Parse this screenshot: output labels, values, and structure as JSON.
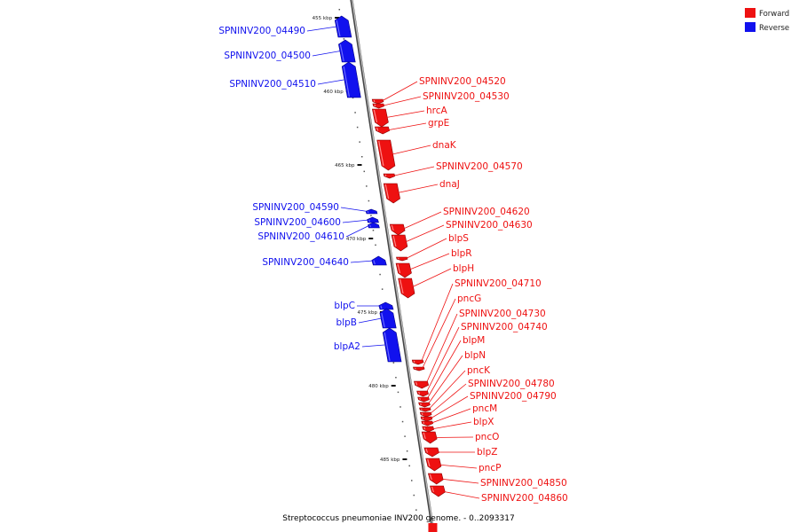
{
  "title": "Streptococcus pneumoniae INV200 genome. - 0..2093317",
  "legend": [
    {
      "label": "Forward",
      "color": "#ee1111"
    },
    {
      "label": "Reverse",
      "color": "#1111ee"
    }
  ],
  "colors": {
    "forward": "#ee1111",
    "reverse": "#1111ee",
    "axis": "#999999"
  },
  "ticks": [
    {
      "kbp": 455,
      "label": "455 kbp"
    },
    {
      "kbp": 460,
      "label": "460 kbp"
    },
    {
      "kbp": 465,
      "label": "465 kbp"
    },
    {
      "kbp": 470,
      "label": "470 kbp"
    },
    {
      "kbp": 475,
      "label": "475 kbp"
    },
    {
      "kbp": 480,
      "label": "480 kbp"
    },
    {
      "kbp": 485,
      "label": "485 kbp"
    }
  ],
  "genes": [
    {
      "name": "SPNINV200_04490",
      "strand": "reverse"
    },
    {
      "name": "SPNINV200_04500",
      "strand": "reverse"
    },
    {
      "name": "SPNINV200_04510",
      "strand": "reverse"
    },
    {
      "name": "SPNINV200_04520",
      "strand": "forward"
    },
    {
      "name": "SPNINV200_04530",
      "strand": "forward"
    },
    {
      "name": "hrcA",
      "strand": "forward"
    },
    {
      "name": "grpE",
      "strand": "forward"
    },
    {
      "name": "dnaK",
      "strand": "forward"
    },
    {
      "name": "SPNINV200_04570",
      "strand": "forward"
    },
    {
      "name": "dnaJ",
      "strand": "forward"
    },
    {
      "name": "SPNINV200_04590",
      "strand": "reverse"
    },
    {
      "name": "SPNINV200_04600",
      "strand": "reverse"
    },
    {
      "name": "SPNINV200_04610",
      "strand": "reverse"
    },
    {
      "name": "SPNINV200_04620",
      "strand": "forward"
    },
    {
      "name": "SPNINV200_04630",
      "strand": "forward"
    },
    {
      "name": "blpS",
      "strand": "forward"
    },
    {
      "name": "SPNINV200_04640",
      "strand": "reverse"
    },
    {
      "name": "blpR",
      "strand": "forward"
    },
    {
      "name": "blpH",
      "strand": "forward"
    },
    {
      "name": "SPNINV200_04710",
      "strand": "forward"
    },
    {
      "name": "pncG",
      "strand": "forward"
    },
    {
      "name": "blpC",
      "strand": "reverse"
    },
    {
      "name": "SPNINV200_04730",
      "strand": "forward"
    },
    {
      "name": "blpB",
      "strand": "reverse"
    },
    {
      "name": "SPNINV200_04740",
      "strand": "forward"
    },
    {
      "name": "blpM",
      "strand": "forward"
    },
    {
      "name": "blpA2",
      "strand": "reverse"
    },
    {
      "name": "blpN",
      "strand": "forward"
    },
    {
      "name": "pncK",
      "strand": "forward"
    },
    {
      "name": "SPNINV200_04780",
      "strand": "forward"
    },
    {
      "name": "SPNINV200_04790",
      "strand": "forward"
    },
    {
      "name": "pncM",
      "strand": "forward"
    },
    {
      "name": "blpX",
      "strand": "forward"
    },
    {
      "name": "pncO",
      "strand": "forward"
    },
    {
      "name": "blpZ",
      "strand": "forward"
    },
    {
      "name": "pncP",
      "strand": "forward"
    },
    {
      "name": "SPNINV200_04850",
      "strand": "forward"
    },
    {
      "name": "SPNINV200_04860",
      "strand": "forward"
    }
  ]
}
